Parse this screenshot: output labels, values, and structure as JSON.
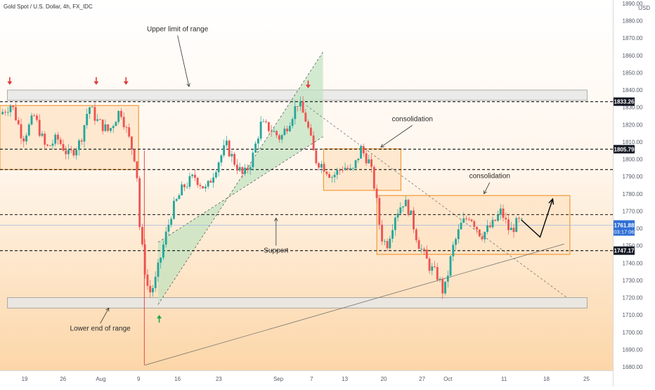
{
  "chart_data": {
    "type": "candlestick",
    "title": "Gold Spot / U.S. Dollar, 4h, FX_IDC",
    "currency": "USD",
    "ylim": [
      1678,
      1892
    ],
    "y_ticks": [
      1680,
      1690,
      1700,
      1710,
      1720,
      1730,
      1740,
      1750,
      1760,
      1770,
      1780,
      1790,
      1800,
      1810,
      1820,
      1830,
      1840,
      1850,
      1860,
      1870,
      1880,
      1890
    ],
    "x_range": [
      0,
      107
    ],
    "x_ticks": [
      {
        "label": "19",
        "x": 4.3
      },
      {
        "label": "26",
        "x": 11.0
      },
      {
        "label": "Aug",
        "x": 17.6
      },
      {
        "label": "9",
        "x": 24.2
      },
      {
        "label": "16",
        "x": 31.0
      },
      {
        "label": "23",
        "x": 38.2
      },
      {
        "label": "Sep",
        "x": 48.6
      },
      {
        "label": "7",
        "x": 54.4
      },
      {
        "label": "13",
        "x": 60.2
      },
      {
        "label": "20",
        "x": 67.0
      },
      {
        "label": "27",
        "x": 73.7
      },
      {
        "label": "Oct",
        "x": 78.2
      },
      {
        "label": "11",
        "x": 88.0
      },
      {
        "label": "18",
        "x": 95.4
      },
      {
        "label": "25",
        "x": 102.4
      }
    ],
    "price_path": [
      [
        0,
        1826
      ],
      [
        2,
        1832
      ],
      [
        4,
        1812
      ],
      [
        6,
        1825
      ],
      [
        8,
        1806
      ],
      [
        10,
        1812
      ],
      [
        12,
        1802
      ],
      [
        14,
        1810
      ],
      [
        15.5,
        1831
      ],
      [
        17,
        1822
      ],
      [
        19,
        1816
      ],
      [
        21,
        1829
      ],
      [
        22.5,
        1812
      ],
      [
        23.8,
        1798
      ],
      [
        24.4,
        1760
      ],
      [
        25.2,
        1738
      ],
      [
        26,
        1722
      ],
      [
        27,
        1728
      ],
      [
        28.5,
        1750
      ],
      [
        30,
        1770
      ],
      [
        32,
        1784
      ],
      [
        34,
        1790
      ],
      [
        36,
        1782
      ],
      [
        38,
        1798
      ],
      [
        39.5,
        1808
      ],
      [
        41,
        1798
      ],
      [
        42.5,
        1790
      ],
      [
        44,
        1800
      ],
      [
        45.5,
        1820
      ],
      [
        47,
        1818
      ],
      [
        49,
        1812
      ],
      [
        50.5,
        1822
      ],
      [
        52,
        1833
      ],
      [
        53.5,
        1822
      ],
      [
        55,
        1800
      ],
      [
        56.5,
        1796
      ],
      [
        58,
        1790
      ],
      [
        60,
        1796
      ],
      [
        61.5,
        1792
      ],
      [
        63,
        1806
      ],
      [
        64.5,
        1798
      ],
      [
        65.5,
        1782
      ],
      [
        66.5,
        1756
      ],
      [
        67.5,
        1750
      ],
      [
        69,
        1768
      ],
      [
        70.5,
        1776
      ],
      [
        71.5,
        1770
      ],
      [
        73,
        1752
      ],
      [
        75,
        1738
      ],
      [
        76.5,
        1732
      ],
      [
        77.5,
        1722
      ],
      [
        78.2,
        1734
      ],
      [
        79,
        1748
      ],
      [
        80.5,
        1762
      ],
      [
        82,
        1768
      ],
      [
        84,
        1756
      ],
      [
        86,
        1762
      ],
      [
        87.5,
        1770
      ],
      [
        89,
        1758
      ],
      [
        90.5,
        1764
      ],
      [
        91.5,
        1762
      ]
    ],
    "horizontal_levels": [
      {
        "price": 1833.26,
        "label": "1833.26",
        "tag_color": "#131722"
      },
      {
        "price": 1805.79,
        "label": "1805.79",
        "tag_color": "#131722"
      },
      {
        "price": 1747.17,
        "label": "1747.17",
        "tag_color": "#131722"
      },
      {
        "price": 1794
      },
      {
        "price": 1768
      }
    ],
    "current_price": {
      "price": 1761.88,
      "label": "1761.88",
      "countdown": "03:17:06",
      "tag_color": "#2f6fd6"
    },
    "zones": [
      {
        "type": "range-band",
        "x": [
          1.3,
          102.5
        ],
        "y": [
          1834,
          1840
        ]
      },
      {
        "type": "range-band",
        "x": [
          1.3,
          102.5
        ],
        "y": [
          1714,
          1720
        ]
      },
      {
        "type": "consolidation-box",
        "x": [
          0,
          24.2
        ],
        "y": [
          1794,
          1831
        ]
      },
      {
        "type": "consolidation-box",
        "x": [
          56.5,
          70
        ],
        "y": [
          1782,
          1806
        ]
      },
      {
        "type": "consolidation-box",
        "x": [
          65.8,
          99.5
        ],
        "y": [
          1745,
          1779
        ]
      }
    ],
    "channel": {
      "points": [
        [
          27.6,
          1716
        ],
        [
          56.4,
          1862
        ],
        [
          56.4,
          1813
        ],
        [
          27.6,
          1752
        ]
      ]
    },
    "trend_lines": [
      {
        "from": [
          25.3,
          1681
        ],
        "to": [
          98.5,
          1751
        ],
        "style": "solid"
      },
      {
        "from": [
          53.5,
          1831
        ],
        "to": [
          99,
          1720
        ],
        "style": "dashed"
      }
    ],
    "projection": {
      "points": [
        [
          91,
          1765
        ],
        [
          94.3,
          1755
        ],
        [
          96.5,
          1777
        ]
      ]
    },
    "markers": [
      {
        "type": "down-arrow",
        "x": 1.7,
        "y": 1845,
        "color": "#e03a3a"
      },
      {
        "type": "down-arrow",
        "x": 16.8,
        "y": 1845,
        "color": "#e03a3a"
      },
      {
        "type": "down-arrow",
        "x": 22,
        "y": 1845,
        "color": "#e03a3a"
      },
      {
        "type": "down-arrow",
        "x": 53.8,
        "y": 1843,
        "color": "#e03a3a"
      },
      {
        "type": "up-arrow",
        "x": 27.8,
        "y": 1708,
        "color": "#22a447"
      }
    ],
    "annotations": [
      {
        "text": "Upper limit of range",
        "x": 31,
        "y": 1874,
        "arrow_to": [
          33,
          1842
        ]
      },
      {
        "text": "Lower end of range",
        "x": 17.5,
        "y": 1701,
        "arrow_to": [
          19,
          1714
        ]
      },
      {
        "text": "Support",
        "x": 48.2,
        "y": 1746,
        "arrow_to": [
          48.2,
          1766
        ]
      },
      {
        "text": "consolidation",
        "x": 72,
        "y": 1822,
        "arrow_to": [
          66.5,
          1807
        ]
      },
      {
        "text": "consolidation",
        "x": 85.5,
        "y": 1789,
        "arrow_to": [
          84.5,
          1780
        ]
      }
    ],
    "colors": {
      "up": "#26a69a",
      "down": "#ef5350",
      "box_fill": "#fde3c4",
      "box_stroke": "#f29a3a",
      "band_fill": "#e6e6e6",
      "band_stroke": "#9a9a9a",
      "channel_fill": "#bfe3bf",
      "gradient_top": "#ffffff",
      "gradient_bottom": "#fcd6a8",
      "drop_line": "#e84a4a"
    }
  }
}
